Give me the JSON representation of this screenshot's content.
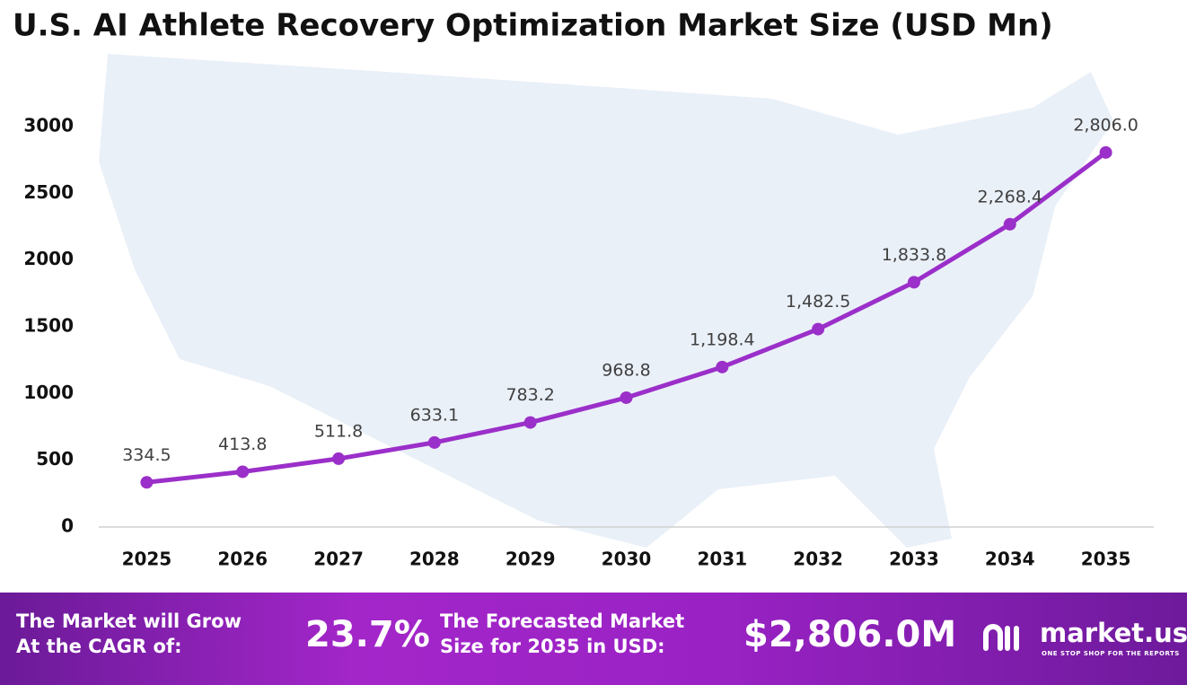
{
  "chart_data": {
    "type": "line",
    "title": "U.S. AI Athlete Recovery Optimization Market Size (USD Mn)",
    "categories": [
      "2025",
      "2026",
      "2027",
      "2028",
      "2029",
      "2030",
      "2031",
      "2032",
      "2033",
      "2034",
      "2035"
    ],
    "values": [
      334.5,
      413.8,
      511.8,
      633.1,
      783.2,
      968.8,
      1198.4,
      1482.5,
      1833.8,
      2268.4,
      2806.0
    ],
    "value_labels": [
      "334.5",
      "413.8",
      "511.8",
      "633.1",
      "783.2",
      "968.8",
      "1,198.4",
      "1,482.5",
      "1,833.8",
      "2,268.4",
      "2,806.0"
    ],
    "color": "#9b2fc9",
    "ylim": [
      0,
      3000
    ],
    "yticks": [
      0,
      500,
      1000,
      1500,
      2000,
      2500,
      3000
    ],
    "grid": false
  },
  "footer": {
    "cagr_label": [
      "The Market will Grow",
      "At the CAGR of:"
    ],
    "cagr_value": "23.7%",
    "forecast_label": [
      "The Forecasted Market",
      "Size for 2035 in USD:"
    ],
    "forecast_value": "$2,806.0M",
    "brand": "market.us",
    "tagline": "ONE STOP SHOP FOR THE REPORTS"
  }
}
